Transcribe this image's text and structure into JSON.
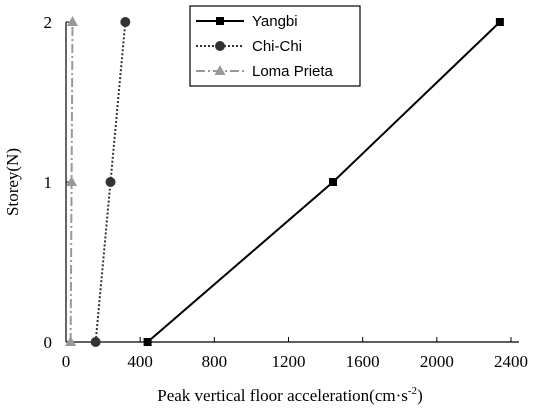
{
  "chart_data": {
    "type": "line",
    "title": "",
    "xlabel": "Peak vertical floor acceleration(cm·s",
    "xlabel_sup": "-2",
    "ylabel": "Storey(N)",
    "xlim": [
      0,
      2400
    ],
    "ylim": [
      0,
      2
    ],
    "xticks": [
      0,
      400,
      800,
      1200,
      1600,
      2000,
      2400
    ],
    "xtick_labels": [
      "0",
      "400",
      "800",
      "1200",
      "1600",
      "2000",
      "2400"
    ],
    "yticks": [
      0,
      1,
      2
    ],
    "ytick_labels": [
      "0",
      "1",
      "2"
    ],
    "grid": false,
    "legend_position": "top-right",
    "series": [
      {
        "name": "Yangbi",
        "x": [
          440,
          1440,
          2340
        ],
        "y": [
          0,
          1,
          2
        ],
        "color": "#000000",
        "line_style": "solid",
        "marker": "square"
      },
      {
        "name": "Chi-Chi",
        "x": [
          160,
          240,
          320
        ],
        "y": [
          0,
          1,
          2
        ],
        "color": "#333333",
        "line_style": "dotted",
        "marker": "circle"
      },
      {
        "name": "Loma Prieta",
        "x": [
          25,
          30,
          35
        ],
        "y": [
          0,
          1,
          2
        ],
        "color": "#999999",
        "line_style": "dash-dot",
        "marker": "triangle"
      }
    ]
  }
}
